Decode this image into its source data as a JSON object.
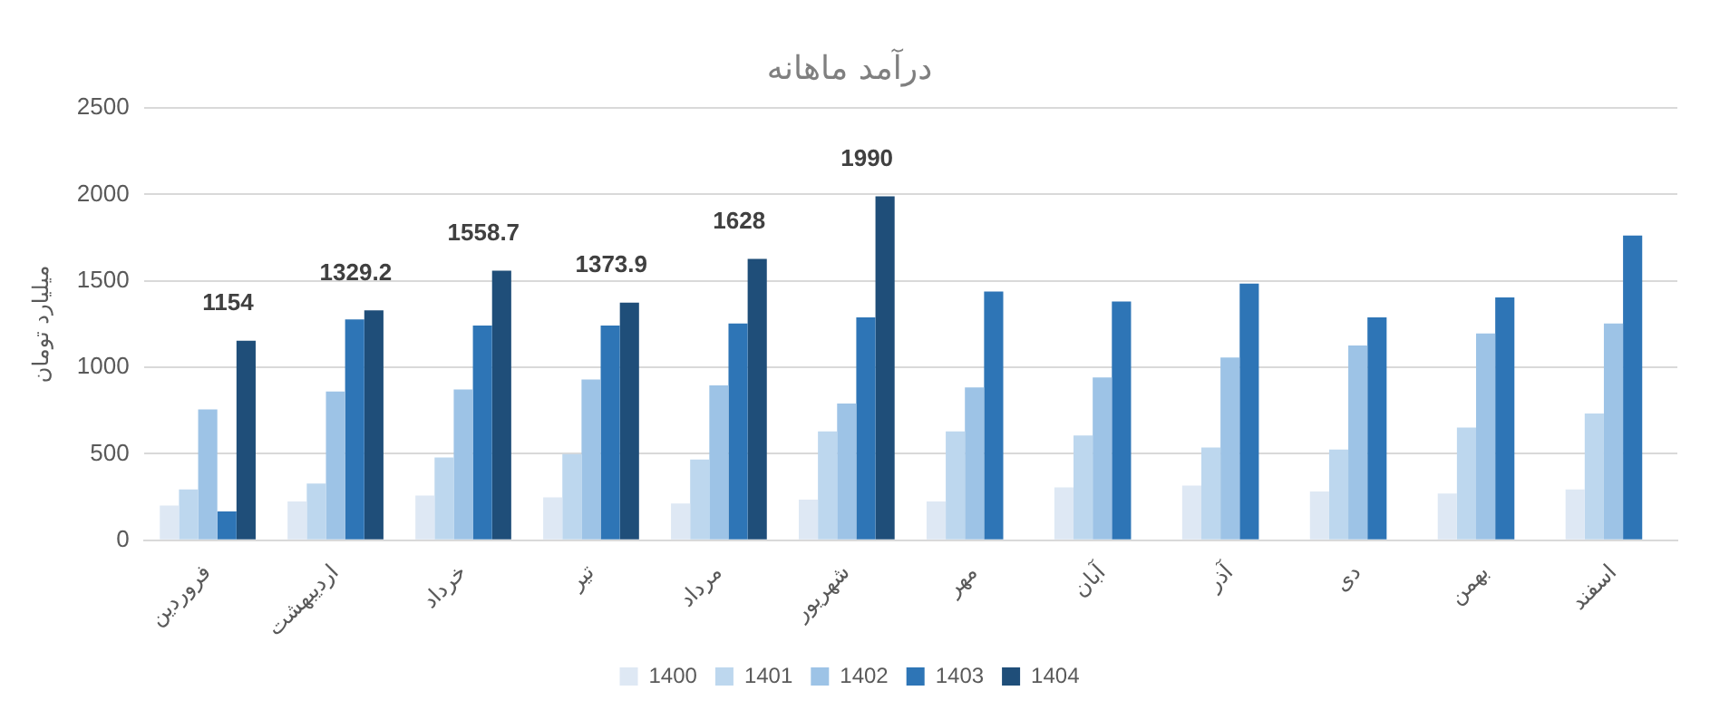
{
  "chart_data": {
    "type": "bar",
    "title": "درآمد ماهانه",
    "ylabel": "میلیارد تومان",
    "categories": [
      "فروردین",
      "اردیبهشت",
      "خرداد",
      "تیر",
      "مرداد",
      "شهریور",
      "مهر",
      "آبان",
      "آذر",
      "دی",
      "بهمن",
      "اسفند"
    ],
    "series": [
      {
        "name": "1400",
        "color": "#dee8f4",
        "values": [
          200,
          224,
          258,
          247,
          212,
          235,
          224,
          305,
          316,
          282,
          270,
          293
        ]
      },
      {
        "name": "1401",
        "color": "#bdd7ee",
        "values": [
          293,
          328,
          478,
          498,
          467,
          629,
          629,
          606,
          536,
          525,
          652,
          733
        ]
      },
      {
        "name": "1402",
        "color": "#9dc3e6",
        "values": [
          756,
          860,
          872,
          930,
          895,
          791,
          884,
          941,
          1057,
          1127,
          1196,
          1254
        ]
      },
      {
        "name": "1403",
        "color": "#2e75b6",
        "values": [
          166,
          1277,
          1242,
          1242,
          1254,
          1289,
          1439,
          1381,
          1485,
          1289,
          1404,
          1763
        ]
      },
      {
        "name": "1404",
        "color": "#1f4e79",
        "values": [
          1154,
          1329.2,
          1558.7,
          1373.9,
          1628,
          1990,
          null,
          null,
          null,
          null,
          null,
          null
        ],
        "value_labels": [
          "1154",
          "1329.2",
          "1558.7",
          "1373.9",
          "1628",
          "1990",
          null,
          null,
          null,
          null,
          null,
          null
        ]
      }
    ],
    "ylim": [
      0,
      2500
    ],
    "yticks": [
      0,
      500,
      1000,
      1500,
      2000,
      2500
    ],
    "grid": "y",
    "legend": "bottom"
  }
}
